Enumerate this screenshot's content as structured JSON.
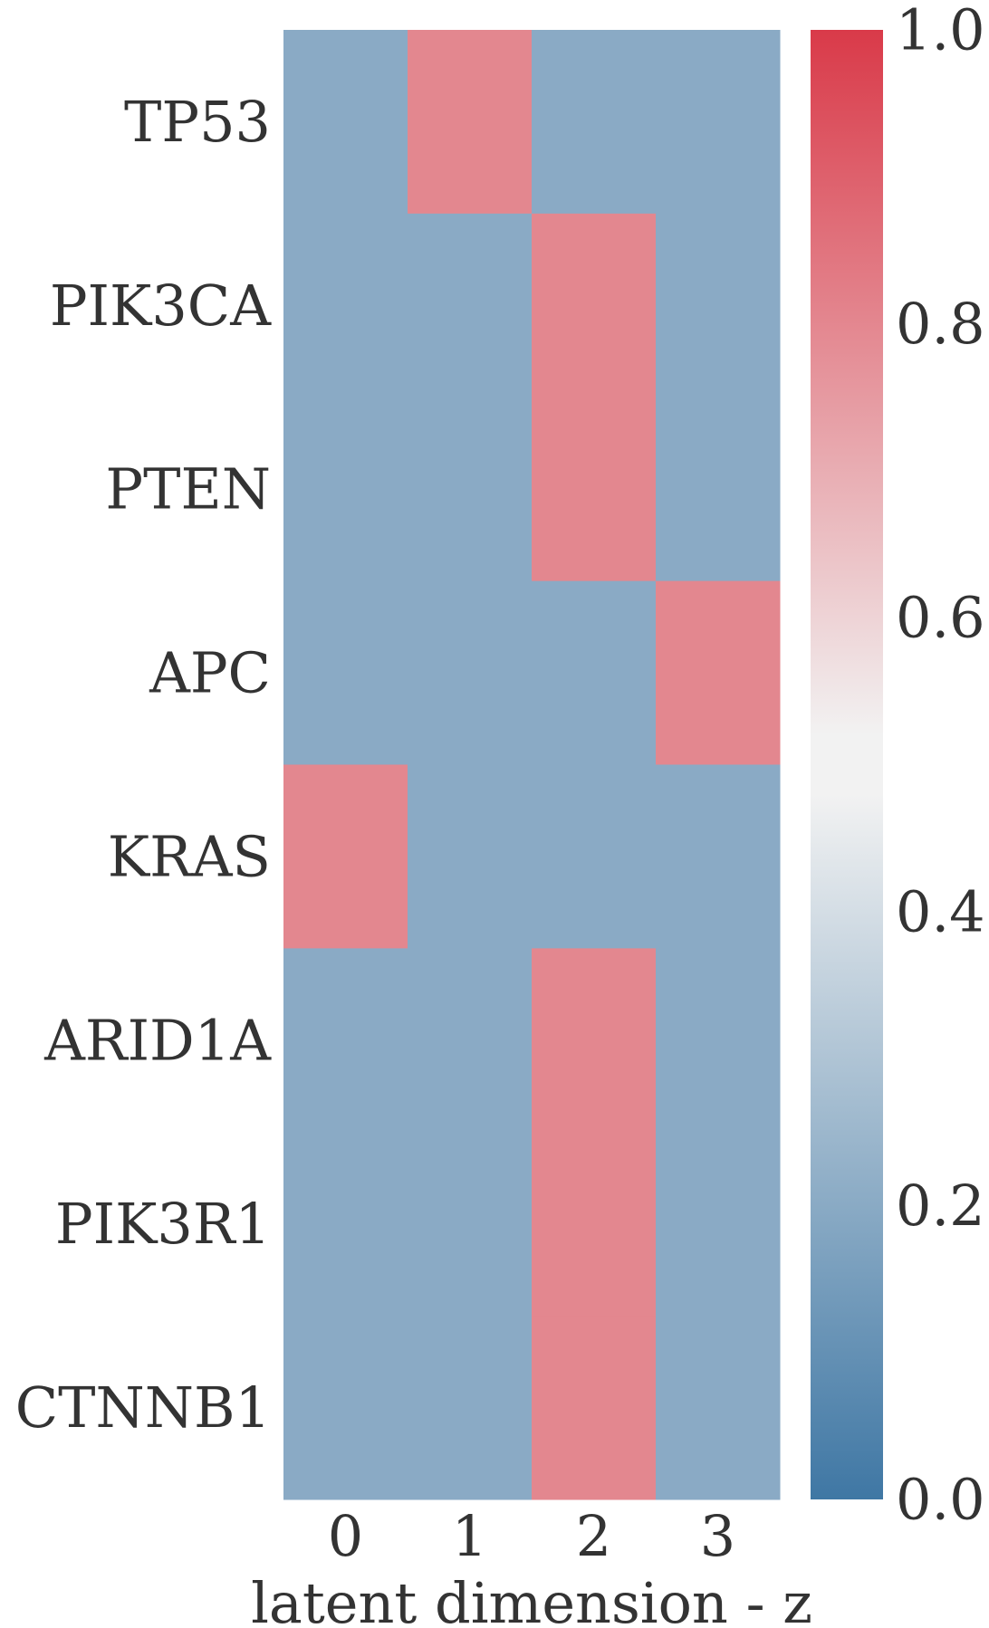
{
  "chart_data": {
    "type": "heatmap",
    "title": "",
    "xlabel": "latent dimension - z",
    "ylabel": "",
    "x_categories": [
      "0",
      "1",
      "2",
      "3"
    ],
    "y_categories": [
      "TP53",
      "PIK3CA",
      "PTEN",
      "APC",
      "KRAS",
      "ARID1A",
      "PIK3R1",
      "CTNNB1"
    ],
    "values": [
      [
        0.2,
        0.8,
        0.2,
        0.2
      ],
      [
        0.2,
        0.2,
        0.8,
        0.2
      ],
      [
        0.2,
        0.2,
        0.8,
        0.2
      ],
      [
        0.2,
        0.2,
        0.2,
        0.8
      ],
      [
        0.8,
        0.2,
        0.2,
        0.2
      ],
      [
        0.2,
        0.2,
        0.8,
        0.2
      ],
      [
        0.2,
        0.2,
        0.8,
        0.2
      ],
      [
        0.2,
        0.2,
        0.8,
        0.2
      ]
    ],
    "colorbar": {
      "vmin": 0.0,
      "vmax": 1.0,
      "ticks": [
        0.0,
        0.2,
        0.4,
        0.6,
        0.8,
        1.0
      ],
      "tick_labels": [
        "0.0",
        "0.2",
        "0.4",
        "0.6",
        "0.8",
        "1.0"
      ],
      "colormap": "diverging blue-white-red",
      "low_color": "#3f77a4",
      "mid_color": "#f2f2f2",
      "high_color": "#d93a49",
      "center_band": [
        0.48,
        0.52
      ]
    },
    "grid": false
  }
}
